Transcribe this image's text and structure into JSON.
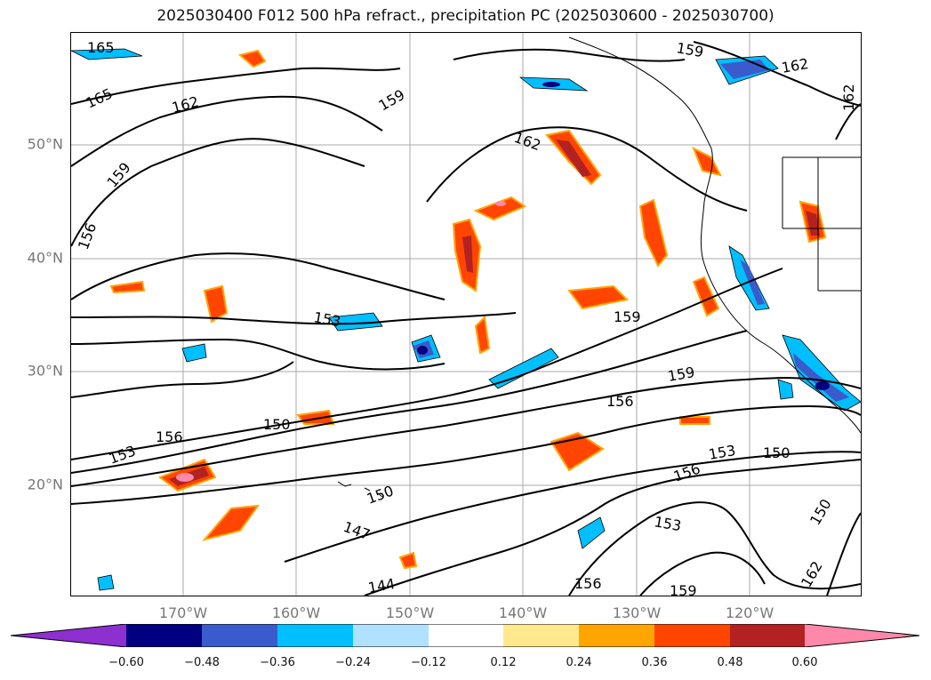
{
  "title": "2025030400 F012 500 hPa refract., precipitation PC (2025030600 - 2025030700)",
  "map": {
    "lat_labels": [
      "50°N",
      "40°N",
      "30°N",
      "20°N"
    ],
    "lon_labels": [
      "170°W",
      "160°W",
      "150°W",
      "140°W",
      "130°W",
      "120°W"
    ],
    "contour_labels": [
      "165",
      "165",
      "162",
      "159",
      "156",
      "159",
      "162",
      "159",
      "162",
      "162",
      "153",
      "159",
      "159",
      "156",
      "150",
      "153",
      "156",
      "150",
      "147",
      "144",
      "153",
      "156",
      "159",
      "156",
      "153",
      "150",
      "150",
      "162"
    ],
    "contour_color": "#000000",
    "gridline_color": "#aaaaaa",
    "coastline_color": "#000000"
  },
  "colorbar": {
    "ticks": [
      "−0.60",
      "−0.48",
      "−0.36",
      "−0.24",
      "−0.12",
      "0.12",
      "0.24",
      "0.36",
      "0.48",
      "0.60"
    ],
    "colors": [
      "#8e2fd0",
      "#000080",
      "#3a5bcc",
      "#00bfff",
      "#b0e2ff",
      "#ffffff",
      "#ffe98c",
      "#ffa500",
      "#ff4500",
      "#b22222",
      "#ff88aa"
    ]
  }
}
